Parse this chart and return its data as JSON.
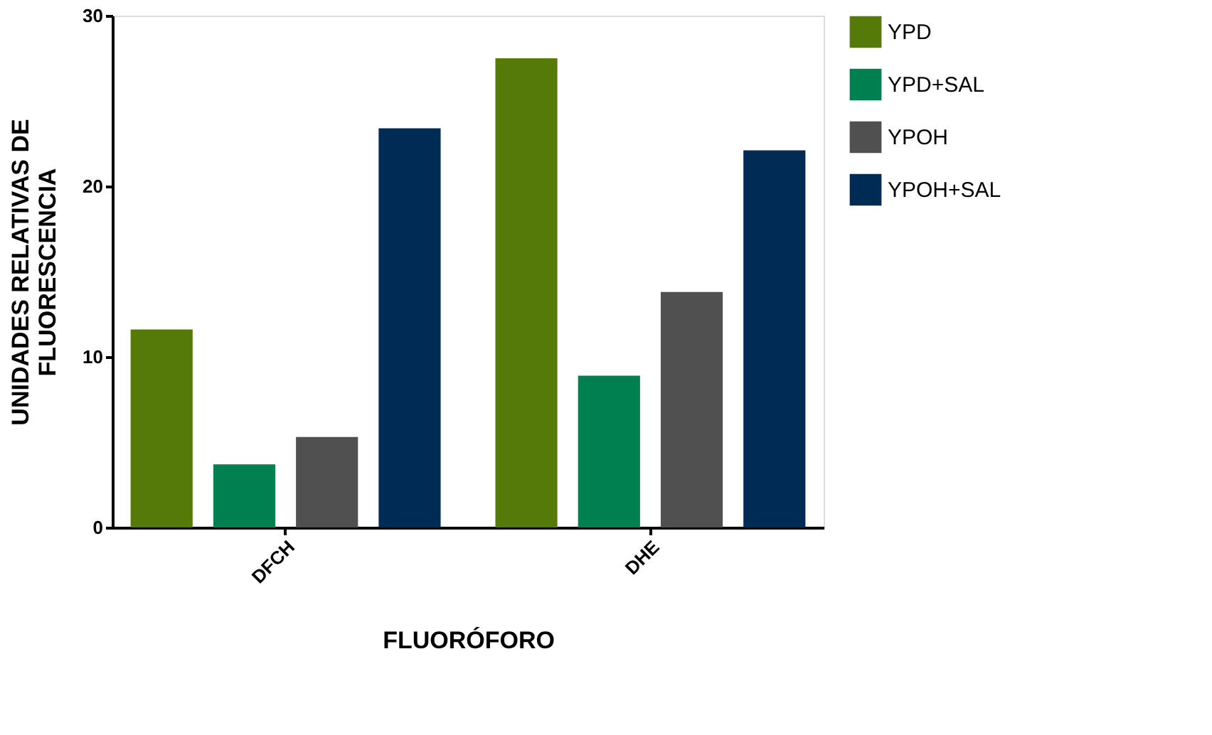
{
  "chart_data": {
    "type": "bar",
    "xlabel": "FLUORÓFORO",
    "ylabel": "UNIDADES RELATIVAS DE\nFLUORESCENCIA",
    "categories": [
      "DFCH",
      "DHE"
    ],
    "series": [
      {
        "name": "YPD",
        "color": "#557a0a",
        "values": [
          11.6,
          27.5
        ]
      },
      {
        "name": "YPD+SAL",
        "color": "#008050",
        "values": [
          3.7,
          8.9
        ]
      },
      {
        "name": "YPOH",
        "color": "#505050",
        "values": [
          5.3,
          13.8
        ]
      },
      {
        "name": "YPOH+SAL",
        "color": "#002b55",
        "values": [
          23.4,
          22.1
        ]
      }
    ],
    "ylim": [
      0,
      30
    ],
    "yticks": [
      0,
      10,
      20,
      30
    ],
    "grid": false,
    "legend": "top right"
  }
}
